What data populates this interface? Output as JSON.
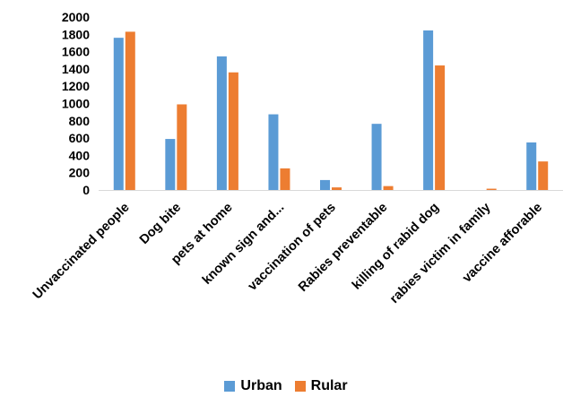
{
  "chart_data": {
    "type": "bar",
    "title": "",
    "xlabel": "",
    "ylabel": "",
    "ylim": [
      0,
      2000
    ],
    "yticks": [
      0,
      200,
      400,
      600,
      800,
      1000,
      1200,
      1400,
      1600,
      1800,
      2000
    ],
    "grid": false,
    "legend_position": "bottom",
    "categories": [
      "Unvaccinated people",
      "Dog bite",
      "pets at home",
      "known sign and...",
      "vaccination of pets",
      "Rabies preventable",
      "killing of rabid dog",
      "rabies victim in family",
      "vaccine afforable"
    ],
    "series": [
      {
        "name": "Urban",
        "color": "#5B9BD5",
        "values": [
          1760,
          590,
          1545,
          875,
          115,
          765,
          1845,
          0,
          550
        ]
      },
      {
        "name": "Rular",
        "color": "#ED7D31",
        "values": [
          1830,
          990,
          1360,
          250,
          30,
          45,
          1440,
          15,
          330
        ]
      }
    ]
  }
}
